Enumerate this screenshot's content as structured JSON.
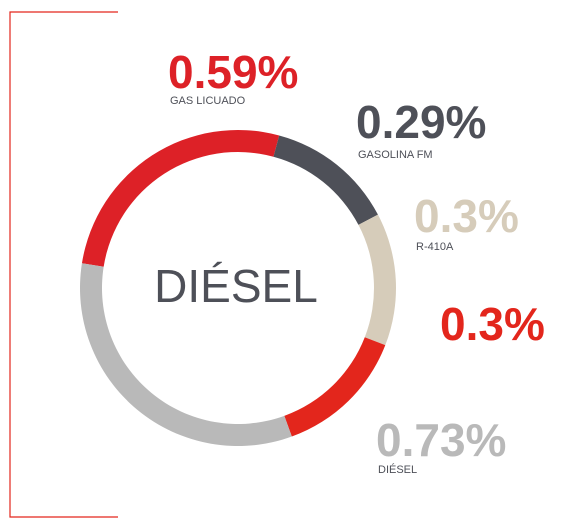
{
  "chart_data": {
    "type": "donut",
    "center_label": "DIÉSEL",
    "categories": [
      "GAS LICUADO",
      "GASOLINA FM",
      "R-410A",
      null,
      "DIÉSEL"
    ],
    "values": [
      0.59,
      0.29,
      0.3,
      0.3,
      0.73
    ],
    "value_labels": [
      "0.59%",
      "0.29%",
      "0.3%",
      "0.3%",
      "0.73%"
    ],
    "colors": [
      "#dd2127",
      "#4e5058",
      "#d6ccba",
      "#e3261c",
      "#b9b9b9"
    ]
  }
}
